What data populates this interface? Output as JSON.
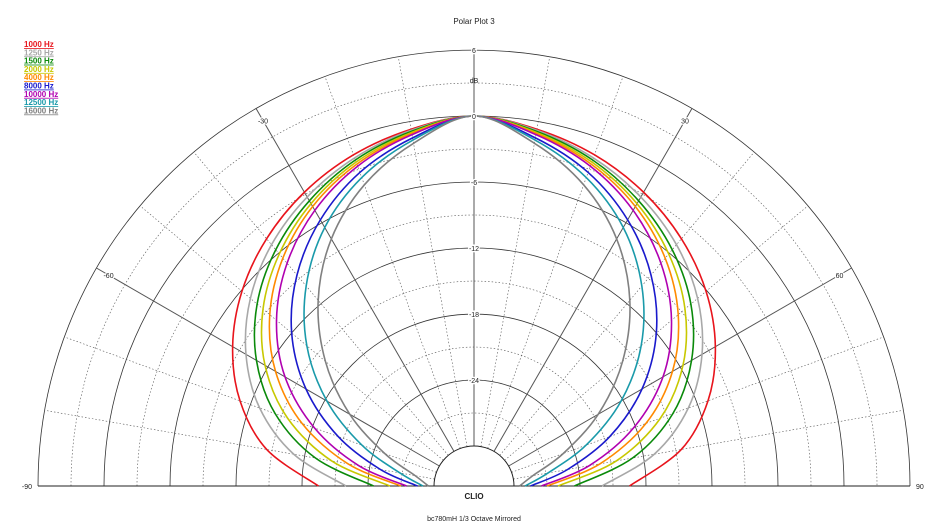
{
  "chart_data": {
    "type": "polar",
    "title": "Polar Plot 3",
    "unit_label": "dB",
    "subtitle": "bc780mH  1/3 Octave  Mirrored",
    "brand": "CLIO",
    "radial_ticks": [
      "6",
      "0",
      "-6",
      "-12",
      "-18",
      "-24"
    ],
    "radial_range": [
      -30,
      6
    ],
    "angle_ticks": [
      "-90",
      "-60",
      "-30",
      "30",
      "60",
      "90"
    ],
    "angle_range": [
      -90,
      90
    ],
    "grid": true,
    "legend_position": "top-left",
    "angles": [
      0,
      10,
      20,
      30,
      40,
      50,
      60,
      70,
      80,
      90
    ],
    "series": [
      {
        "name": "1000 Hz",
        "color": "#e8141c",
        "values": [
          0,
          -0.7,
          -1.6,
          -2.8,
          -4.3,
          -6.1,
          -8.3,
          -11.0,
          -14.5,
          -19.5
        ]
      },
      {
        "name": "1250 Hz",
        "color": "#a8a8a8",
        "values": [
          0,
          -0.8,
          -1.9,
          -3.3,
          -5.0,
          -7.1,
          -9.7,
          -12.9,
          -17.0,
          -22.0
        ]
      },
      {
        "name": "1500 Hz",
        "color": "#0a8a0a",
        "values": [
          0,
          -0.9,
          -2.1,
          -3.7,
          -5.6,
          -7.9,
          -10.8,
          -14.4,
          -19.0,
          -24.5
        ]
      },
      {
        "name": "2000 Hz",
        "color": "#c8c800",
        "values": [
          0,
          -1.0,
          -2.3,
          -4.0,
          -6.1,
          -8.6,
          -11.7,
          -15.6,
          -20.5,
          -26.0
        ]
      },
      {
        "name": "4000 Hz",
        "color": "#ff8a00",
        "values": [
          0,
          -1.1,
          -2.5,
          -4.3,
          -6.6,
          -9.4,
          -12.8,
          -17.0,
          -22.0,
          -27.0
        ]
      },
      {
        "name": "8000 Hz",
        "color": "#1a1acc",
        "values": [
          0,
          -1.5,
          -3.3,
          -5.7,
          -8.6,
          -12.0,
          -16.0,
          -20.5,
          -25.0,
          -28.5
        ]
      },
      {
        "name": "10000 Hz",
        "color": "#b000b0",
        "values": [
          0,
          -1.2,
          -2.7,
          -4.7,
          -7.2,
          -10.2,
          -13.8,
          -18.2,
          -23.0,
          -27.5
        ]
      },
      {
        "name": "12500 Hz",
        "color": "#1a9aaa",
        "values": [
          0,
          -1.7,
          -3.8,
          -6.5,
          -9.9,
          -13.8,
          -18.2,
          -22.8,
          -26.8,
          -29.0
        ]
      },
      {
        "name": "16000 Hz",
        "color": "#808080",
        "values": [
          0,
          -2.0,
          -4.5,
          -7.7,
          -11.6,
          -16.0,
          -20.6,
          -25.0,
          -28.2,
          -29.5
        ]
      }
    ]
  }
}
